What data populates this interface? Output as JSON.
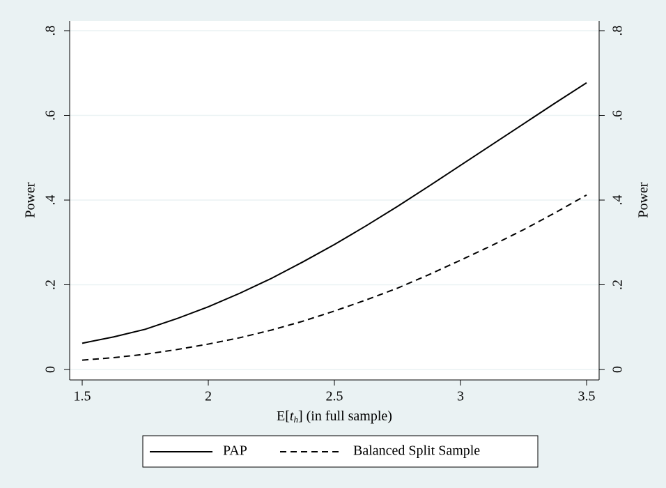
{
  "chart_data": {
    "type": "line",
    "x_label": {
      "prefix": "E[",
      "var": "t",
      "sub": "h",
      "suffix": "] (in full sample)"
    },
    "y_label": "Power",
    "y2_label": "Power",
    "x": [
      1.5,
      1.625,
      1.75,
      1.875,
      2,
      2.125,
      2.25,
      2.375,
      2.5,
      2.625,
      2.75,
      2.875,
      3,
      3.125,
      3.25,
      3.375,
      3.5
    ],
    "series": [
      {
        "name": "PAP",
        "color": "#000000",
        "dash": false,
        "values": [
          0.062,
          0.077,
          0.095,
          0.12,
          0.148,
          0.18,
          0.215,
          0.254,
          0.295,
          0.339,
          0.385,
          0.433,
          0.482,
          0.531,
          0.58,
          0.629,
          0.677
        ]
      },
      {
        "name": "Balanced Split Sample",
        "color": "#000000",
        "dash": true,
        "values": [
          0.022,
          0.028,
          0.036,
          0.047,
          0.06,
          0.075,
          0.093,
          0.114,
          0.138,
          0.164,
          0.192,
          0.224,
          0.258,
          0.293,
          0.33,
          0.37,
          0.412
        ]
      }
    ],
    "xlim": [
      1.5,
      3.5
    ],
    "xticks": [
      1.5,
      2,
      2.5,
      3,
      3.5
    ],
    "ylim": [
      0,
      0.8
    ],
    "yticks": [
      0,
      {
        "value": 0.2,
        "label": ".2"
      },
      {
        "value": 0.4,
        "label": ".4"
      },
      {
        "value": 0.6,
        "label": ".6"
      },
      {
        "value": 0.8,
        "label": ".8"
      }
    ],
    "y2lim": [
      0,
      0.8
    ],
    "y2ticks": [
      0,
      {
        "value": 0.2,
        "label": ".2"
      },
      {
        "value": 0.4,
        "label": ".4"
      },
      {
        "value": 0.6,
        "label": ".6"
      },
      {
        "value": 0.8,
        "label": ".8"
      }
    ],
    "grid": true,
    "legend": "bottom"
  }
}
